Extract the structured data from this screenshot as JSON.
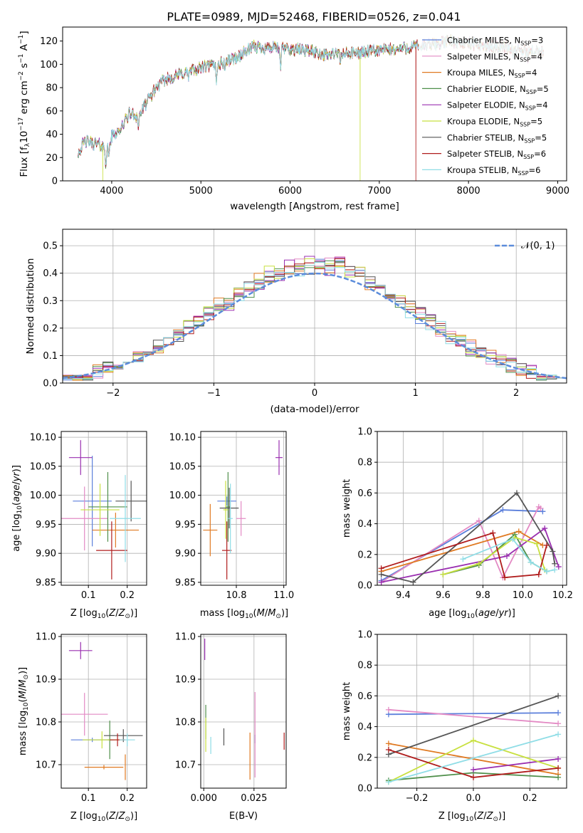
{
  "title": "PLATE=0989, MJD=52468, FIBERID=0526, z=0.041",
  "colors": [
    "#5b7fdb",
    "#e38ac4",
    "#e07a22",
    "#4f8f4a",
    "#9a2fb0",
    "#c8e040",
    "#555555",
    "#b01c1c",
    "#8fdde6"
  ],
  "chart_data": [
    {
      "id": "spectrum",
      "type": "line",
      "title": "PLATE=0989, MJD=52468, FIBERID=0526, z=0.041",
      "xlabel": "wavelength [Angstrom, rest frame]",
      "ylabel": "Flux [fλ10⁻¹⁷ erg cm⁻² s⁻¹ A⁻¹]",
      "xlim": [
        3450,
        9100
      ],
      "ylim": [
        0,
        132
      ],
      "xticks": [
        4000,
        5000,
        6000,
        7000,
        8000,
        9000
      ],
      "yticks": [
        0,
        20,
        40,
        60,
        80,
        100,
        120
      ],
      "grid": false,
      "legend": "top-right",
      "series": [
        {
          "name": "Chabrier MILES, N_SSP=3"
        },
        {
          "name": "Salpeter MILES, N_SSP=4"
        },
        {
          "name": "Kroupa MILES, N_SSP=4"
        },
        {
          "name": "Chabrier ELODIE, N_SSP=5"
        },
        {
          "name": "Salpeter ELODIE, N_SSP=4"
        },
        {
          "name": "Kroupa ELODIE, N_SSP=5"
        },
        {
          "name": "Chabrier STELIB, N_SSP=5"
        },
        {
          "name": "Salpeter STELIB, N_SSP=6"
        },
        {
          "name": "Kroupa STELIB, N_SSP=6"
        }
      ],
      "continuum": {
        "x": [
          3620,
          3700,
          3800,
          3900,
          3950,
          4000,
          4100,
          4200,
          4300,
          4400,
          4500,
          4600,
          4800,
          5000,
          5200,
          5400,
          5600,
          5800,
          6000,
          6200,
          6400,
          6600,
          6800,
          7000,
          7200,
          7400,
          7600,
          7800,
          8000,
          8200,
          8400,
          8600,
          8840
        ],
        "y": [
          24,
          34,
          32,
          30,
          25,
          38,
          45,
          58,
          55,
          68,
          80,
          87,
          92,
          97,
          100,
          106,
          115,
          114,
          113,
          112,
          108,
          109,
          110,
          112,
          113,
          115,
          117,
          120,
          118,
          116,
          115,
          112,
          110
        ]
      },
      "dips": [
        {
          "series": 5,
          "x": 3900,
          "y": 0
        },
        {
          "series": 5,
          "x": 6785,
          "y": 0
        },
        {
          "series": 7,
          "x": 7410,
          "y": 0
        }
      ]
    },
    {
      "id": "residuals",
      "type": "histogram",
      "xlabel": "(data-model)/error",
      "ylabel": "Normed distribution",
      "xlim": [
        -2.5,
        2.5
      ],
      "ylim": [
        0,
        0.56
      ],
      "xticks": [
        -2,
        -1,
        0,
        1,
        2
      ],
      "yticks": [
        0.0,
        0.1,
        0.2,
        0.3,
        0.4,
        0.5
      ],
      "grid": true,
      "legend": "top-right",
      "reference_label": "𝒩(0, 1)",
      "reference_color": "#5b8cdb",
      "bin_width": 0.1
    },
    {
      "id": "age_vs_z",
      "type": "scatter",
      "xlabel": "Z [log₁₀(Z/Z⊙)]",
      "ylabel": "age  [log₁₀(age/yr)]",
      "xlim": [
        0.03,
        0.25
      ],
      "ylim": [
        9.845,
        10.11
      ],
      "xticks": [
        0.1,
        0.2
      ],
      "yticks": [
        9.85,
        9.9,
        9.95,
        10.0,
        10.05,
        10.1
      ],
      "grid": true,
      "points": [
        {
          "x": 0.11,
          "y": 9.99,
          "xerr": 0.05,
          "yerr": 0.078,
          "color": 0
        },
        {
          "x": 0.09,
          "y": 9.96,
          "xerr": 0.06,
          "yerr": 0.055,
          "color": 1
        },
        {
          "x": 0.17,
          "y": 9.94,
          "xerr": 0.06,
          "yerr": 0.03,
          "color": 2
        },
        {
          "x": 0.15,
          "y": 9.98,
          "xerr": 0.05,
          "yerr": 0.06,
          "color": 3
        },
        {
          "x": 0.08,
          "y": 10.065,
          "xerr": 0.03,
          "yerr": 0.03,
          "color": 4
        },
        {
          "x": 0.13,
          "y": 9.975,
          "xerr": 0.05,
          "yerr": 0.045,
          "color": 5
        },
        {
          "x": 0.21,
          "y": 9.99,
          "xerr": 0.04,
          "yerr": 0.035,
          "color": 6
        },
        {
          "x": 0.16,
          "y": 9.905,
          "xerr": 0.04,
          "yerr": 0.05,
          "color": 7
        },
        {
          "x": 0.195,
          "y": 9.96,
          "xerr": 0.04,
          "yerr": 0.075,
          "color": 8
        }
      ]
    },
    {
      "id": "age_vs_mass",
      "type": "scatter",
      "xlabel": "mass [log₁₀(M/M⊙)]",
      "ylabel": "",
      "xlim": [
        10.65,
        11.01
      ],
      "ylim": [
        9.845,
        10.11
      ],
      "xticks": [
        10.8,
        11.0
      ],
      "yticks": [
        9.85,
        9.9,
        9.95,
        10.0,
        10.05,
        10.1
      ],
      "grid": true,
      "points": [
        {
          "x": 10.76,
          "y": 9.99,
          "xerr": 0.04,
          "yerr": 0.008,
          "color": 0
        },
        {
          "x": 10.82,
          "y": 9.96,
          "xerr": 0.02,
          "yerr": 0.03,
          "color": 1
        },
        {
          "x": 10.69,
          "y": 9.94,
          "xerr": 0.03,
          "yerr": 0.045,
          "color": 2
        },
        {
          "x": 10.765,
          "y": 9.98,
          "xerr": 0.01,
          "yerr": 0.06,
          "color": 3
        },
        {
          "x": 10.98,
          "y": 10.065,
          "xerr": 0.015,
          "yerr": 0.03,
          "color": 4
        },
        {
          "x": 10.755,
          "y": 9.975,
          "xerr": 0.01,
          "yerr": 0.05,
          "color": 5
        },
        {
          "x": 10.77,
          "y": 9.978,
          "xerr": 0.04,
          "yerr": 0.035,
          "color": 6
        },
        {
          "x": 10.76,
          "y": 9.905,
          "xerr": 0.02,
          "yerr": 0.05,
          "color": 7
        },
        {
          "x": 10.775,
          "y": 9.96,
          "xerr": 0.01,
          "yerr": 0.06,
          "color": 8
        }
      ]
    },
    {
      "id": "weight_vs_age",
      "type": "line",
      "xlabel": "age  [log₁₀(age/yr)]",
      "ylabel": "mass weight",
      "xlim": [
        9.27,
        10.22
      ],
      "ylim": [
        0,
        1.0
      ],
      "xticks": [
        9.4,
        9.6,
        9.8,
        10.0,
        10.2
      ],
      "yticks": [
        0.0,
        0.2,
        0.4,
        0.6,
        0.8,
        1.0
      ],
      "grid": true,
      "series": [
        {
          "color": 0,
          "x": [
            9.29,
            9.9,
            10.1
          ],
          "y": [
            0.03,
            0.49,
            0.48
          ]
        },
        {
          "color": 1,
          "x": [
            9.29,
            9.78,
            9.9,
            10.08,
            10.09
          ],
          "y": [
            0.02,
            0.42,
            0.05,
            0.51,
            0.5
          ]
        },
        {
          "color": 2,
          "x": [
            9.29,
            9.98,
            10.1
          ],
          "y": [
            0.09,
            0.35,
            0.26
          ]
        },
        {
          "color": 3,
          "x": [
            9.6,
            9.78,
            9.96,
            10.04,
            10.12
          ],
          "y": [
            0.07,
            0.13,
            0.33,
            0.15,
            0.09
          ]
        },
        {
          "color": 4,
          "x": [
            9.29,
            9.92,
            10.11,
            10.18
          ],
          "y": [
            0.02,
            0.19,
            0.37,
            0.12
          ]
        },
        {
          "color": 5,
          "x": [
            9.6,
            9.78,
            9.96,
            10.07,
            10.11
          ],
          "y": [
            0.07,
            0.14,
            0.31,
            0.27,
            0.1
          ]
        },
        {
          "color": 6,
          "x": [
            9.29,
            9.45,
            9.97,
            10.15,
            10.16
          ],
          "y": [
            0.07,
            0.02,
            0.6,
            0.22,
            0.14
          ]
        },
        {
          "color": 7,
          "x": [
            9.29,
            9.85,
            9.91,
            10.08,
            10.12
          ],
          "y": [
            0.11,
            0.34,
            0.05,
            0.07,
            0.26
          ]
        },
        {
          "color": 8,
          "x": [
            9.7,
            9.95,
            10.04,
            10.12,
            10.16
          ],
          "y": [
            0.17,
            0.3,
            0.15,
            0.09,
            0.1
          ]
        }
      ]
    },
    {
      "id": "mass_vs_z",
      "type": "scatter",
      "xlabel": "Z [log₁₀(Z/Z⊙)]",
      "ylabel": "mass [log₁₀(M/M⊙)]",
      "xlim": [
        0.03,
        0.25
      ],
      "ylim": [
        10.645,
        11.005
      ],
      "xticks": [
        0.1,
        0.2
      ],
      "yticks": [
        10.7,
        10.8,
        10.9,
        11.0
      ],
      "grid": true,
      "points": [
        {
          "x": 0.11,
          "y": 10.758,
          "xerr": 0.055,
          "yerr": 0.005,
          "color": 0
        },
        {
          "x": 0.09,
          "y": 10.818,
          "xerr": 0.06,
          "yerr": 0.05,
          "color": 1
        },
        {
          "x": 0.14,
          "y": 10.694,
          "xerr": 0.05,
          "yerr": 0.005,
          "color": 2
        },
        {
          "x": 0.195,
          "y": 10.694,
          "xerr": 0.0,
          "yerr": 0.03,
          "color": 2
        },
        {
          "x": 0.155,
          "y": 10.758,
          "xerr": 0.005,
          "yerr": 0.045,
          "color": 3
        },
        {
          "x": 0.08,
          "y": 10.967,
          "xerr": 0.03,
          "yerr": 0.02,
          "color": 4
        },
        {
          "x": 0.135,
          "y": 10.758,
          "xerr": 0.05,
          "yerr": 0.02,
          "color": 5
        },
        {
          "x": 0.19,
          "y": 10.768,
          "xerr": 0.05,
          "yerr": 0.015,
          "color": 6
        },
        {
          "x": 0.175,
          "y": 10.758,
          "xerr": 0.02,
          "yerr": 0.015,
          "color": 7
        },
        {
          "x": 0.2,
          "y": 10.758,
          "xerr": 0.02,
          "yerr": 0.015,
          "color": 8
        }
      ]
    },
    {
      "id": "mass_vs_ebv",
      "type": "scatter",
      "xlabel": "E(B-V)",
      "ylabel": "",
      "xlim": [
        -0.0015,
        0.041
      ],
      "ylim": [
        10.645,
        11.005
      ],
      "xticks": [
        0.0,
        0.025
      ],
      "xticklabels": [
        "0.000",
        "0.025"
      ],
      "yticks": [
        10.7,
        10.8,
        10.9,
        11.0
      ],
      "grid": true,
      "points": [
        {
          "x": 0.0255,
          "y": 10.76,
          "yerr": 0.01,
          "color": 0
        },
        {
          "x": 0.0255,
          "y": 10.77,
          "yerr": 0.1,
          "color": 1
        },
        {
          "x": 0.023,
          "y": 10.72,
          "yerr": 0.055,
          "color": 2
        },
        {
          "x": 0.001,
          "y": 10.8,
          "yerr": 0.04,
          "color": 3
        },
        {
          "x": 0.0005,
          "y": 10.97,
          "yerr": 0.025,
          "color": 4
        },
        {
          "x": 0.001,
          "y": 10.77,
          "yerr": 0.04,
          "color": 5
        },
        {
          "x": 0.01,
          "y": 10.765,
          "yerr": 0.02,
          "color": 6
        },
        {
          "x": 0.04,
          "y": 10.755,
          "yerr": 0.02,
          "color": 7
        },
        {
          "x": 0.0035,
          "y": 10.745,
          "yerr": 0.02,
          "color": 8
        }
      ]
    },
    {
      "id": "weight_vs_z",
      "type": "line",
      "xlabel": "Z [log₁₀(Z/Z⊙)]",
      "ylabel": "mass weight",
      "xlim": [
        -0.34,
        0.33
      ],
      "ylim": [
        0,
        1.0
      ],
      "xticks": [
        -0.2,
        0.0,
        0.2
      ],
      "yticks": [
        0.0,
        0.2,
        0.4,
        0.6,
        0.8,
        1.0
      ],
      "grid": true,
      "series": [
        {
          "color": 0,
          "x": [
            -0.3,
            0.3
          ],
          "y": [
            0.48,
            0.49
          ]
        },
        {
          "color": 1,
          "x": [
            -0.3,
            0.3
          ],
          "y": [
            0.51,
            0.42
          ]
        },
        {
          "color": 2,
          "x": [
            -0.3,
            0.3
          ],
          "y": [
            0.29,
            0.09
          ]
        },
        {
          "color": 3,
          "x": [
            -0.3,
            0.0,
            0.3
          ],
          "y": [
            0.05,
            0.1,
            0.07
          ]
        },
        {
          "color": 4,
          "x": [
            0.0,
            0.3
          ],
          "y": [
            0.12,
            0.19
          ]
        },
        {
          "color": 5,
          "x": [
            -0.3,
            0.0,
            0.3
          ],
          "y": [
            0.04,
            0.31,
            0.13
          ]
        },
        {
          "color": 6,
          "x": [
            -0.3,
            0.3
          ],
          "y": [
            0.22,
            0.6
          ]
        },
        {
          "color": 7,
          "x": [
            -0.3,
            0.0,
            0.3
          ],
          "y": [
            0.25,
            0.07,
            0.13
          ]
        },
        {
          "color": 8,
          "x": [
            -0.3,
            0.3
          ],
          "y": [
            0.04,
            0.35
          ]
        }
      ]
    }
  ]
}
